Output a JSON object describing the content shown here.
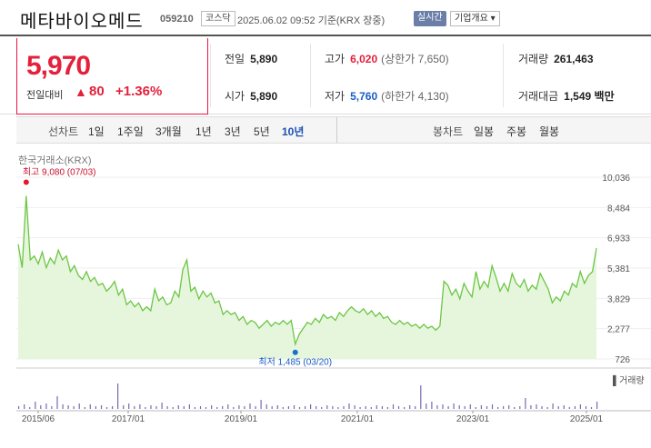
{
  "header": {
    "name": "메타바이오메드",
    "code": "059210",
    "market": "코스닥",
    "date": "2025.06.02 09:52  기준(KRX 장중)",
    "realtime": "실시간",
    "corp_info": "기업개요 ▾"
  },
  "price": {
    "current": "5,970",
    "change_label": "전일대비",
    "arrow": "▲",
    "change": "80",
    "rate": "+1.36%"
  },
  "stats": {
    "prev_label": "전일",
    "prev": "5,890",
    "high_label": "고가",
    "high": "6,020",
    "upper_label": "(상한가",
    "upper": "7,650)",
    "volume_label": "거래량",
    "volume": "261,463",
    "open_label": "시가",
    "open": "5,890",
    "low_label": "저가",
    "low": "5,760",
    "lower_label": "(하한가",
    "lower": "4,130)",
    "amount_label": "거래대금",
    "amount": "1,549 백만"
  },
  "periods": {
    "label": "선차트",
    "items": [
      "1일",
      "1주일",
      "3개월",
      "1년",
      "3년",
      "5년",
      "10년"
    ],
    "selected": "10년",
    "candle_label": "봉차트",
    "candles": [
      "일봉",
      "주봉",
      "월봉"
    ]
  },
  "chart": {
    "source": "한국거래소(KRX)",
    "high_label": "최고 9,080 (07/03)",
    "low_label": "최저 1,485 (03/20)",
    "volume_legend": "▌거래량",
    "colors": {
      "line": "#6cc644",
      "fill": "#e6f6dd",
      "marker_high": "#e01b2f",
      "marker_low": "#1a6fd1",
      "volume": "#7a68b3"
    }
  },
  "chart_data": {
    "type": "area",
    "title": "",
    "y_ticks": [
      "10,036",
      "8,484",
      "6,933",
      "5,381",
      "3,829",
      "2,277",
      "726"
    ],
    "ylim": [
      726,
      10036
    ],
    "x_ticks": [
      "2015/06",
      "2017/01",
      "2019/01",
      "2021/01",
      "2023/01",
      "2025/01"
    ],
    "series": [
      {
        "values": [
          6600,
          5400,
          9080,
          5800,
          6000,
          5600,
          6200,
          5400,
          5900,
          5600,
          6300,
          5800,
          6000,
          5200,
          5500,
          5000,
          4800,
          5200,
          4700,
          4900,
          4500,
          4600,
          4200,
          4400,
          4700,
          4000,
          4300,
          3500,
          3700,
          3400,
          3600,
          3200,
          3400,
          3200,
          4300,
          3700,
          3900,
          3500,
          3600,
          4200,
          3900,
          5300,
          5800,
          4200,
          4400,
          3800,
          4200,
          3900,
          4100,
          3600,
          3700,
          3000,
          3200,
          3000,
          3100,
          2700,
          2900,
          2500,
          2700,
          2600,
          2300,
          2500,
          2700,
          2400,
          2600,
          2500,
          2700,
          2500,
          2700,
          1485,
          2000,
          2300,
          2600,
          2500,
          2800,
          2600,
          3000,
          2800,
          2900,
          2700,
          3100,
          2900,
          3200,
          3400,
          3200,
          3100,
          3300,
          3000,
          3200,
          2900,
          3100,
          2800,
          2900,
          2600,
          2500,
          2700,
          2500,
          2600,
          2400,
          2500,
          2300,
          2500,
          2300,
          2400,
          2200,
          2400,
          4700,
          4500,
          4000,
          4300,
          3800,
          4600,
          4200,
          3900,
          5200,
          4300,
          4700,
          4400,
          5500,
          4900,
          4200,
          4600,
          4200,
          5100,
          4600,
          4400,
          4800,
          4200,
          4500,
          4300,
          5100,
          4700,
          4300,
          3600,
          3900,
          3700,
          4200,
          4000,
          4600,
          4400,
          5200,
          4600,
          5000,
          5200,
          6400
        ]
      }
    ]
  }
}
